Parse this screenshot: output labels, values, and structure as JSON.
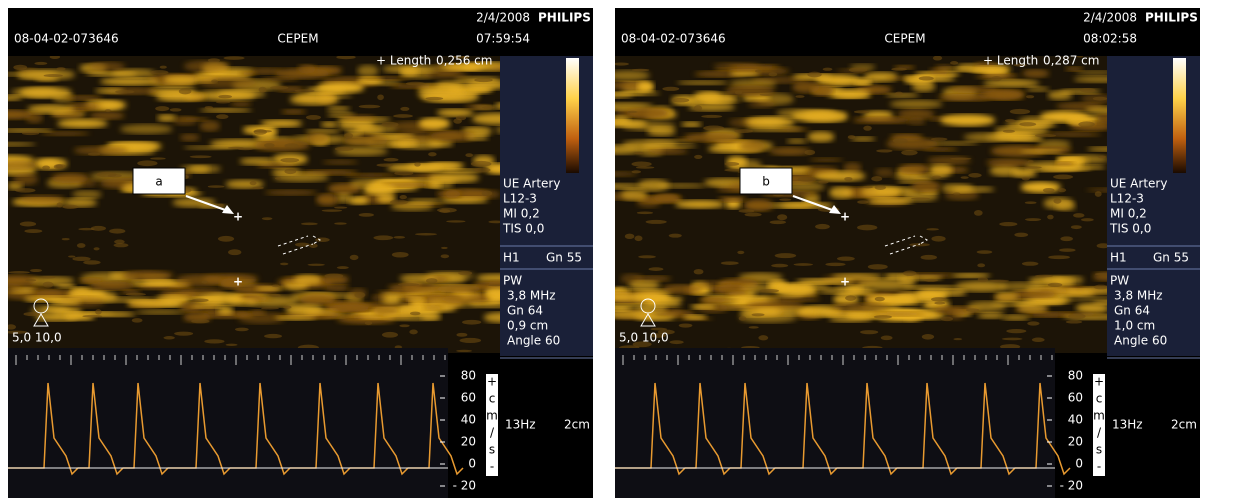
{
  "panels": [
    {
      "patient_id": "08-04-02-073646",
      "institution": "CEPEM",
      "date": "2/4/2008",
      "time": "07:59:54",
      "brand": "PHILIPS",
      "measure_label": "+ Length",
      "measure_value": "0,256 cm",
      "marker": "a",
      "probe_scale": "5,0 10,0",
      "settings": [
        "UE Artery",
        "L12-3",
        "MI 0,2",
        "TIS 0,0"
      ],
      "harmonic": "H1",
      "gain": "Gn 55",
      "pw": [
        "PW",
        "3,8 MHz",
        "Gn 64",
        "0,9 cm",
        "Angle 60"
      ],
      "velocity_ticks": [
        "80",
        "60",
        "40",
        "20",
        "0",
        "- 20"
      ],
      "velocity_unit": [
        "+",
        "c",
        "m",
        "/",
        "s",
        "-"
      ],
      "prf": "13Hz",
      "depth": "2cm"
    },
    {
      "patient_id": "08-04-02-073646",
      "institution": "CEPEM",
      "date": "2/4/2008",
      "time": "08:02:58",
      "brand": "PHILIPS",
      "measure_label": "+ Length",
      "measure_value": "0,287 cm",
      "marker": "b",
      "probe_scale": "5,0 10,0",
      "settings": [
        "UE Artery",
        "L12-3",
        "MI 0,2",
        "TIS 0,0"
      ],
      "harmonic": "H1",
      "gain": "Gn 55",
      "pw": [
        "PW",
        "3,8 MHz",
        "Gn 64",
        "1,0 cm",
        "Angle 60"
      ],
      "velocity_ticks": [
        "80",
        "60",
        "40",
        "20",
        "0",
        "- 20"
      ],
      "velocity_unit": [
        "+",
        "c",
        "m",
        "/",
        "s",
        "-"
      ],
      "prf": "13Hz",
      "depth": "2cm"
    }
  ]
}
